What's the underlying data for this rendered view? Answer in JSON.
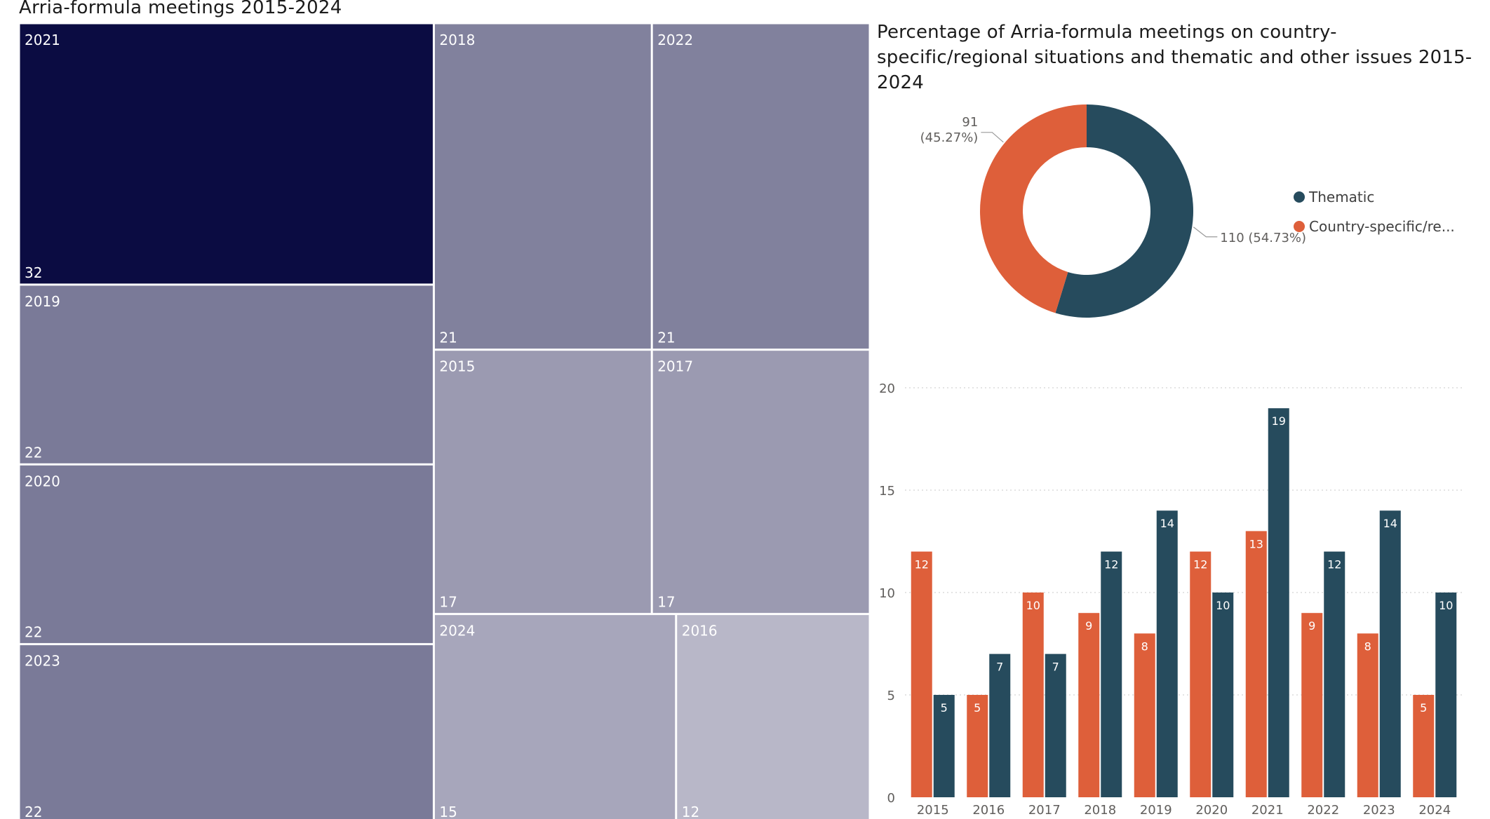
{
  "page_title": "Arria-formula meetings 2015-2024",
  "colors": {
    "thematic": "#264B5D",
    "country": "#DE5F3A",
    "treemap_darkest": "#0B0C42",
    "treemap_lightest": "#B8B7C8",
    "grid": "#d4d4d4",
    "axis_text": "#605E5C"
  },
  "chart_data": [
    {
      "type": "treemap",
      "title": "Arria-formula meetings 2015-2024",
      "items": [
        {
          "label": "2021",
          "value": 32
        },
        {
          "label": "2019",
          "value": 22
        },
        {
          "label": "2020",
          "value": 22
        },
        {
          "label": "2023",
          "value": 22
        },
        {
          "label": "2018",
          "value": 21
        },
        {
          "label": "2022",
          "value": 21
        },
        {
          "label": "2015",
          "value": 17
        },
        {
          "label": "2017",
          "value": 17
        },
        {
          "label": "2024",
          "value": 15
        },
        {
          "label": "2016",
          "value": 12
        }
      ]
    },
    {
      "type": "pie",
      "title": "Percentage of Arria-formula meetings on country-specific/regional situations and thematic and other issues 2015-2024",
      "slices": [
        {
          "name": "Thematic",
          "value": 110,
          "label": "110 (54.73%)"
        },
        {
          "name": "Country-specific/re...",
          "value": 91,
          "label_line1": "91",
          "label_line2": "(45.27%)"
        }
      ],
      "legend": [
        "Thematic",
        "Country-specific/re..."
      ],
      "legend_position": "right"
    },
    {
      "type": "bar",
      "categories": [
        "2015",
        "2016",
        "2017",
        "2018",
        "2019",
        "2020",
        "2021",
        "2022",
        "2023",
        "2024"
      ],
      "series": [
        {
          "name": "Country-specific/re...",
          "values": [
            12,
            5,
            10,
            9,
            8,
            12,
            13,
            9,
            8,
            5
          ]
        },
        {
          "name": "Thematic",
          "values": [
            5,
            7,
            7,
            12,
            14,
            10,
            19,
            12,
            14,
            10
          ]
        }
      ],
      "ylim": [
        0,
        20
      ],
      "yticks": [
        0,
        5,
        10,
        15,
        20
      ],
      "grid": true
    }
  ]
}
